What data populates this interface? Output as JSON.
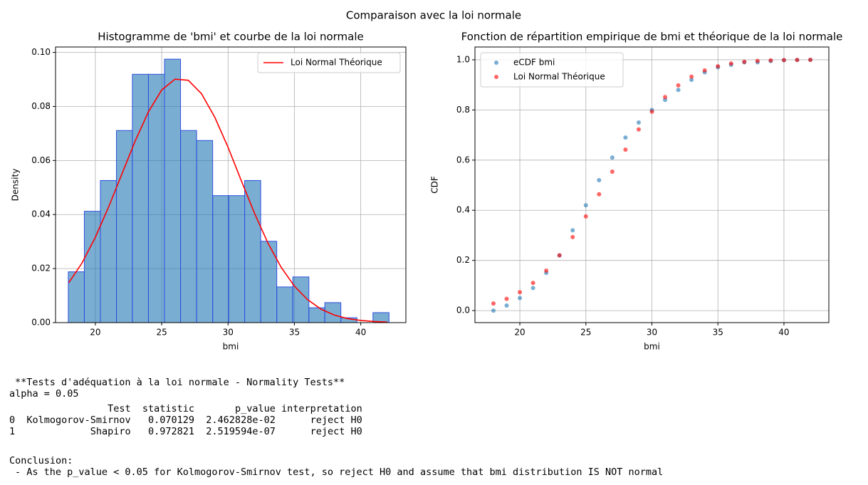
{
  "suptitle": "Comparaison avec la loi normale",
  "chart_data": [
    {
      "type": "histogram",
      "title": "Histogramme de 'bmi' et courbe de la loi normale",
      "xlabel": "bmi",
      "ylabel": "Density",
      "bins": [
        17.96,
        19.17,
        20.38,
        21.59,
        22.79,
        24.0,
        25.21,
        26.42,
        27.63,
        28.84,
        30.05,
        31.25,
        32.46,
        33.67,
        34.88,
        36.09,
        37.29,
        38.5,
        39.71,
        40.92,
        42.13
      ],
      "values": [
        0.0188,
        0.0412,
        0.0526,
        0.0711,
        0.0919,
        0.0919,
        0.0975,
        0.0711,
        0.0674,
        0.047,
        0.047,
        0.0526,
        0.0301,
        0.0132,
        0.0169,
        0.0055,
        0.0074,
        0.0018,
        0,
        0.0037
      ],
      "color": "#1f77b4",
      "edgecolor": "#2f4fe0",
      "xlim": [
        17.0,
        43.4
      ],
      "ylim": [
        0,
        0.102
      ],
      "xticks": [
        20,
        25,
        30,
        35,
        40
      ],
      "yticks": [
        {
          "value": 0,
          "label": "0.00"
        },
        {
          "value": 0.02,
          "label": "0.02"
        },
        {
          "value": 0.04,
          "label": "0.04"
        },
        {
          "value": 0.06,
          "label": "0.06"
        },
        {
          "value": 0.08,
          "label": "0.08"
        },
        {
          "value": 0.1,
          "label": "0.10"
        }
      ],
      "grid": true,
      "legend": "upper right",
      "series": [
        {
          "name": "Loi Normal Théorique",
          "color": "#ff0000",
          "type": "line",
          "x": [
            18,
            19,
            20,
            21,
            22,
            23,
            24,
            25,
            26,
            27,
            28,
            29,
            30,
            31,
            32,
            33,
            34,
            35,
            36,
            37,
            38,
            39,
            40,
            41,
            42
          ],
          "values": [
            0.0148,
            0.0221,
            0.0316,
            0.0428,
            0.055,
            0.0672,
            0.078,
            0.0861,
            0.0901,
            0.0897,
            0.0847,
            0.076,
            0.0649,
            0.0525,
            0.0404,
            0.0295,
            0.0205,
            0.0135,
            0.0085,
            0.005,
            0.0028,
            0.0015,
            0.0008,
            0.0004,
            0.0002
          ]
        }
      ]
    },
    {
      "type": "scatter",
      "title": "Fonction de répartition empirique de bmi et théorique de la loi normale",
      "xlabel": "bmi",
      "ylabel": "CDF",
      "xlim": [
        16.6,
        43.4
      ],
      "ylim": [
        -0.048,
        1.051
      ],
      "xticks": [
        20,
        25,
        30,
        35,
        40
      ],
      "yticks": [
        {
          "value": 0,
          "label": "0.0"
        },
        0.2,
        0.4,
        0.6,
        0.8,
        {
          "value": 1,
          "label": "1.0"
        }
      ],
      "grid": true,
      "legend": "upper left",
      "series": [
        {
          "name": "eCDF bmi",
          "color": "#1f77b4",
          "x": [
            18,
            19,
            20,
            21,
            22,
            23,
            24,
            25,
            26,
            27,
            28,
            29,
            30,
            31,
            32,
            33,
            34,
            35,
            36,
            37,
            38,
            39,
            40,
            41,
            42
          ],
          "values": [
            0.0,
            0.02,
            0.05,
            0.09,
            0.15,
            0.22,
            0.32,
            0.42,
            0.52,
            0.61,
            0.69,
            0.75,
            0.8,
            0.84,
            0.88,
            0.92,
            0.95,
            0.97,
            0.98,
            0.99,
            0.99,
            0.995,
            0.998,
            0.999,
            1.0
          ]
        },
        {
          "name": "Loi Normal Théorique",
          "color": "#ff0000",
          "x": [
            18,
            19,
            20,
            21,
            22,
            23,
            24,
            25,
            26,
            27,
            28,
            29,
            30,
            31,
            32,
            33,
            34,
            35,
            36,
            37,
            38,
            39,
            40,
            41,
            42
          ],
          "values": [
            0.0284,
            0.0467,
            0.0734,
            0.1104,
            0.1592,
            0.2203,
            0.2932,
            0.3756,
            0.4638,
            0.5541,
            0.6417,
            0.7224,
            0.7928,
            0.8515,
            0.898,
            0.9328,
            0.9576,
            0.9744,
            0.9853,
            0.9919,
            0.9957,
            0.9979,
            0.999,
            0.9995,
            0.9998
          ]
        }
      ]
    }
  ],
  "output": {
    "heading": "**Tests d'adéquation à la loi normale - Normality Tests**",
    "alpha": "alpha = 0.05",
    "table": {
      "columns": [
        "Test",
        "statistic",
        "p_value",
        "interpretation"
      ],
      "rows": [
        [
          "0",
          "Kolmogorov-Smirnov",
          "0.070129",
          "2.462828e-02",
          "reject H0"
        ],
        [
          "1",
          "Shapiro",
          "0.972821",
          "2.519594e-07",
          "reject H0"
        ]
      ]
    },
    "conclusion_title": "Conclusion:",
    "conclusion": "- As the p_value < 0.05 for Kolmogorov-Smirnov test, so reject H0 and assume that bmi distribution IS NOT normal"
  }
}
